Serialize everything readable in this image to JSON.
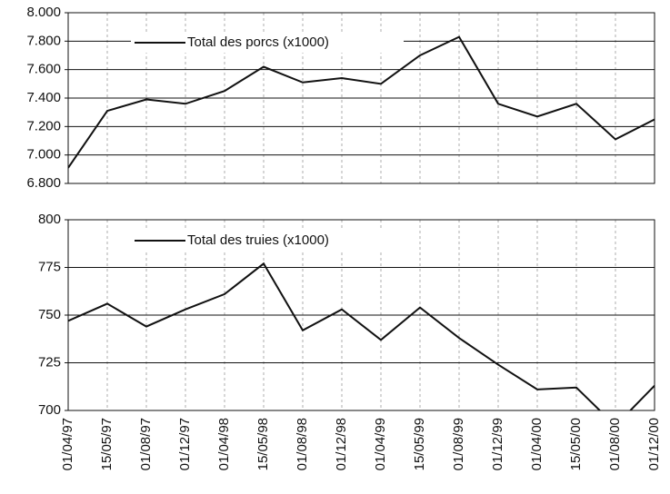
{
  "chart_data": [
    {
      "type": "line",
      "series": [
        {
          "name": "Total des porcs (x1000)",
          "color": "#111111",
          "values": [
            6910,
            7310,
            7390,
            7360,
            7450,
            7620,
            7510,
            7540,
            7500,
            7700,
            7830,
            7360,
            7270,
            7360,
            7110,
            7250
          ]
        }
      ],
      "ylim": [
        6800,
        8000
      ],
      "yticks": [
        {
          "value": 6800,
          "label": "6.800"
        },
        {
          "value": 7000,
          "label": "7.000"
        },
        {
          "value": 7200,
          "label": "7.200"
        },
        {
          "value": 7400,
          "label": "7.400"
        },
        {
          "value": 7600,
          "label": "7.600"
        },
        {
          "value": 7800,
          "label": "7.800"
        },
        {
          "value": 8000,
          "label": "8.000"
        }
      ],
      "grid": true
    },
    {
      "type": "line",
      "categories": [
        "01/04/97",
        "15/05/97",
        "01/08/97",
        "01/12/97",
        "01/04/98",
        "15/05/98",
        "01/08/98",
        "01/12/98",
        "01/04/99",
        "15/05/99",
        "01/08/99",
        "01/12/99",
        "01/04/00",
        "15/05/00",
        "01/08/00",
        "01/12/00"
      ],
      "series": [
        {
          "name": "Total des truies (x1000)",
          "color": "#111111",
          "values": [
            747,
            756,
            744,
            753,
            761,
            777,
            742,
            753,
            737,
            754,
            738,
            724,
            711,
            712,
            692,
            713
          ]
        }
      ],
      "ylim": [
        700,
        800
      ],
      "yticks": [
        700,
        725,
        750,
        775,
        800
      ],
      "grid": true
    }
  ]
}
